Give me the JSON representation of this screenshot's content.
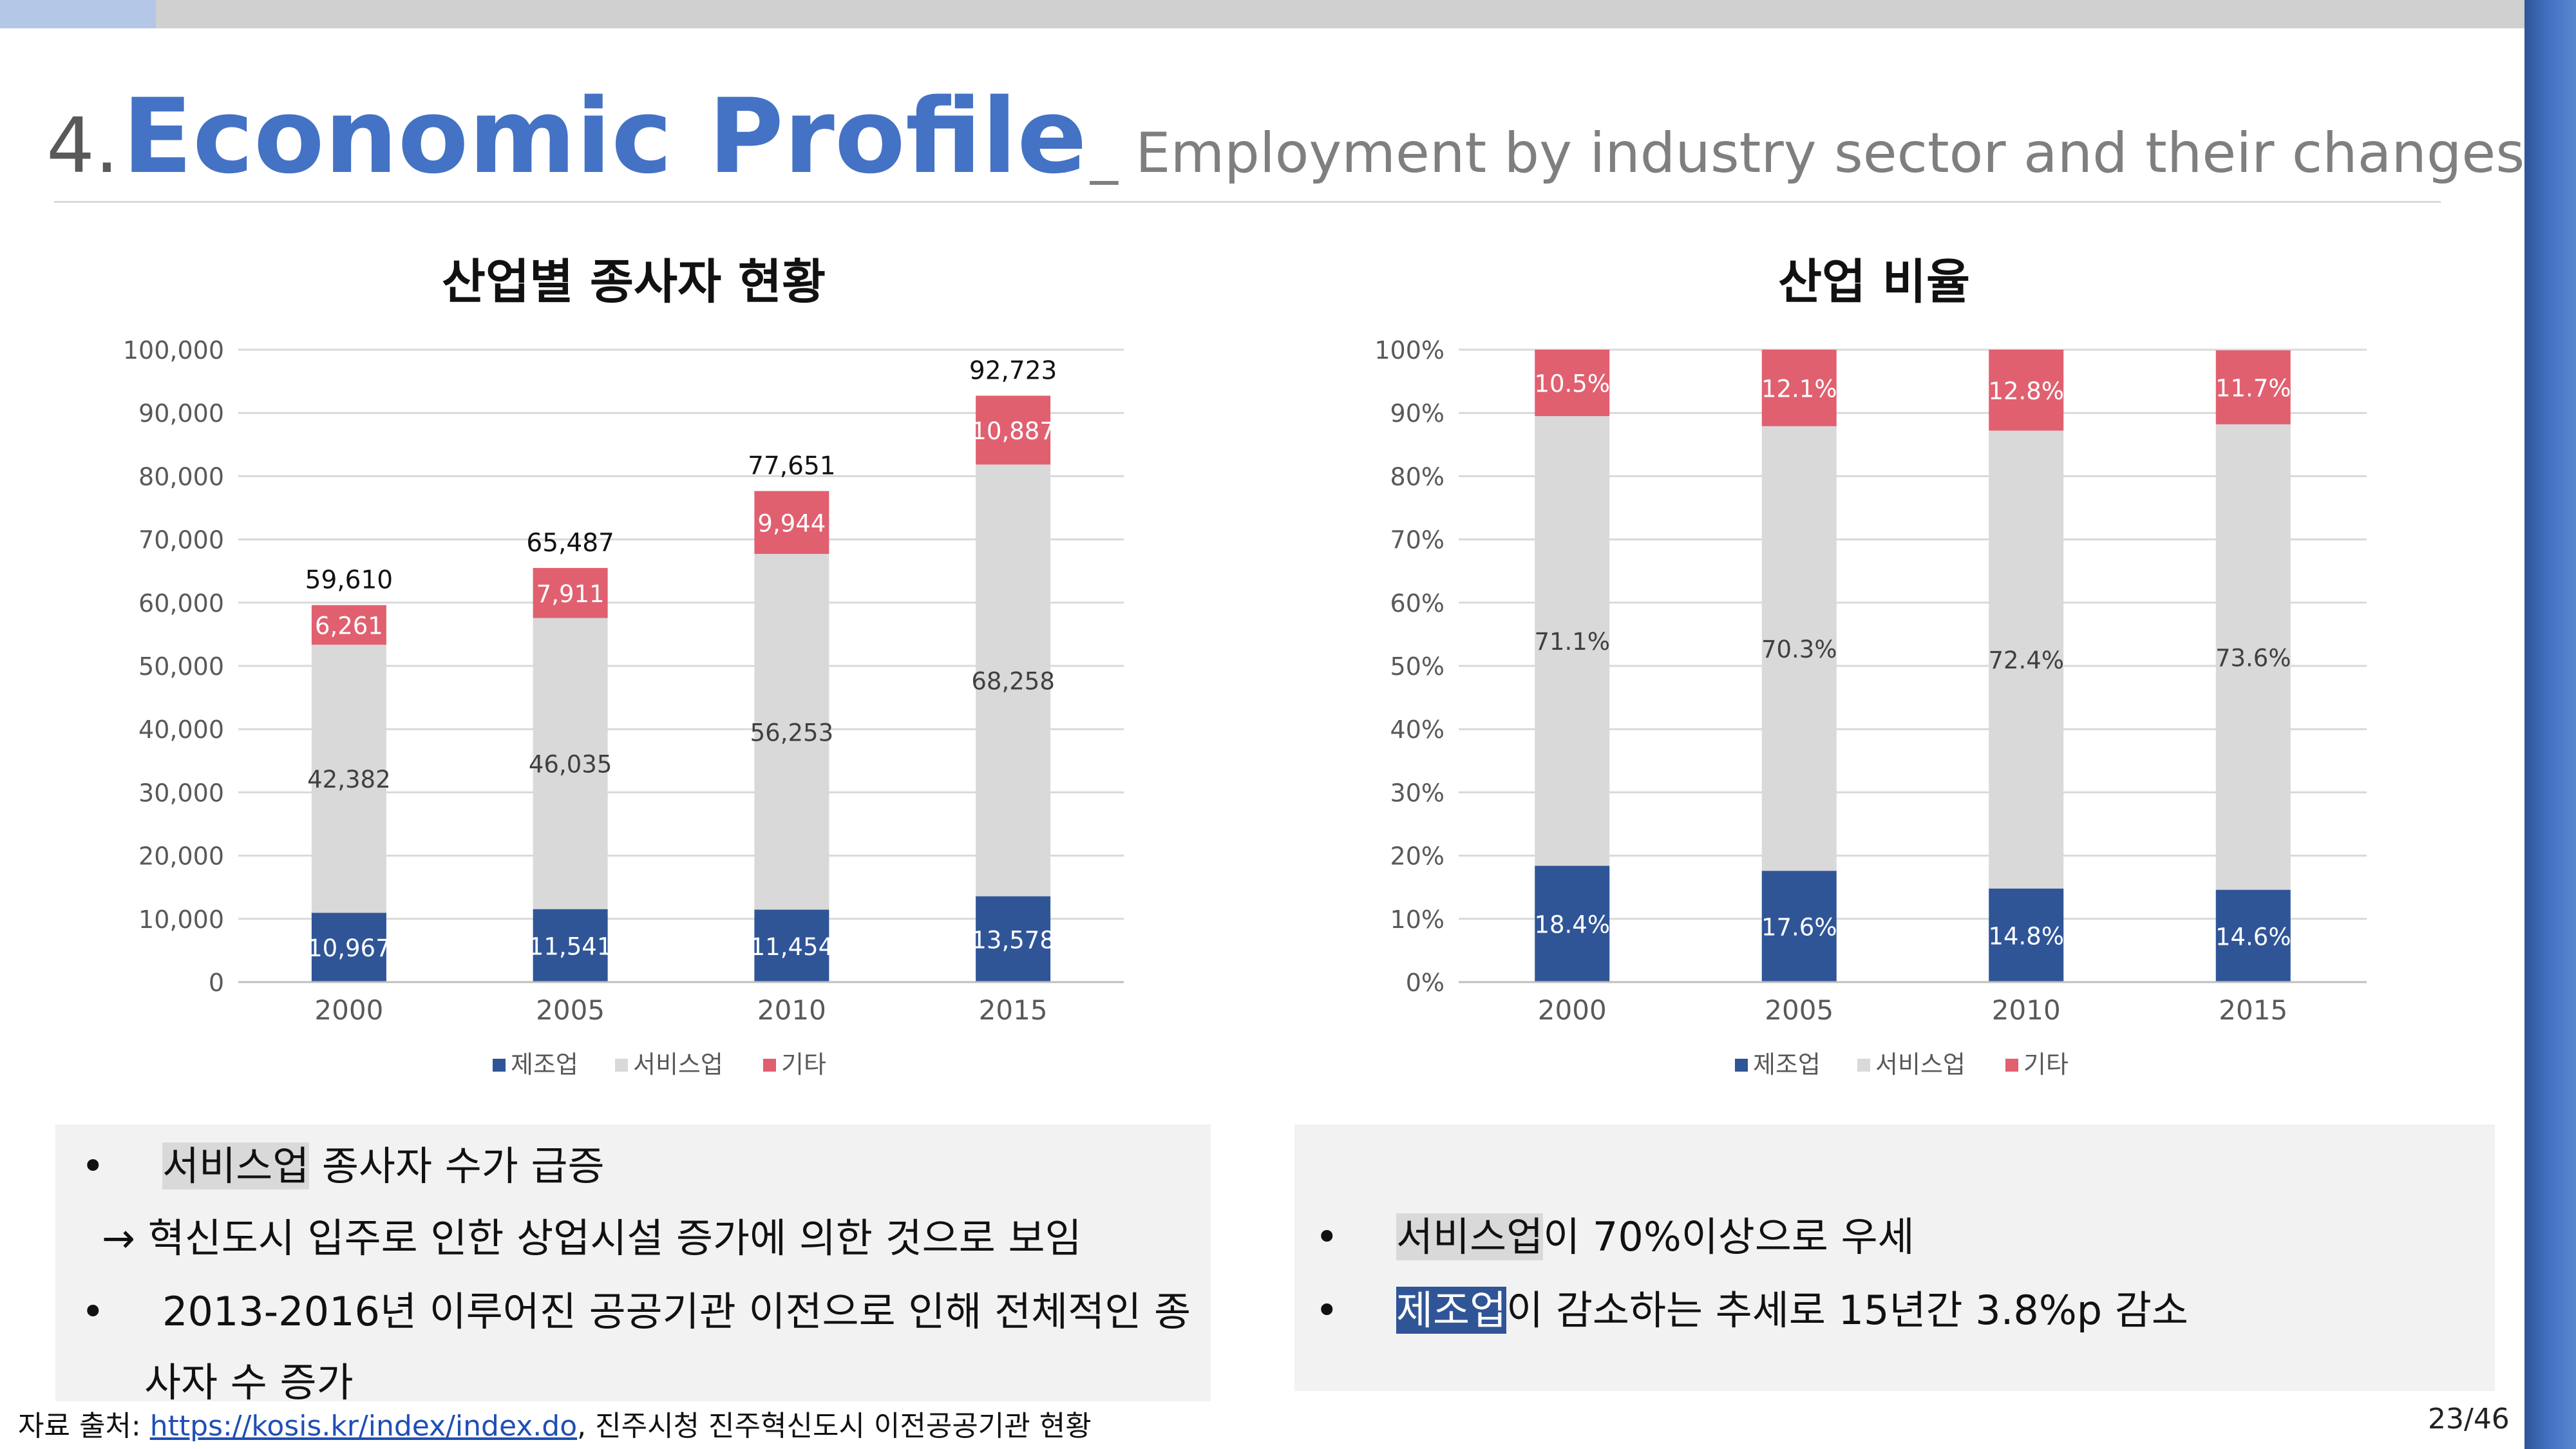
{
  "header": {
    "number": "4.",
    "title": "Economic Profile",
    "subtitle": "_ Employment by industry sector and their changes"
  },
  "legend": {
    "manufacturing": "제조업",
    "service": "서비스업",
    "other": "기타"
  },
  "colors": {
    "manufacturing": "#2f5597",
    "service": "#d9d9d9",
    "other": "#e06070",
    "title_blue": "#4472c4"
  },
  "chart_data": [
    {
      "type": "bar",
      "stacked": true,
      "title": "산업별 종사자 현황",
      "categories": [
        "2000",
        "2005",
        "2010",
        "2015"
      ],
      "series": [
        {
          "name": "제조업",
          "values": [
            10967,
            11541,
            11454,
            13578
          ],
          "labels": [
            "10,967",
            "11,541",
            "11,454",
            "13,578"
          ]
        },
        {
          "name": "서비스업",
          "values": [
            42382,
            46035,
            56253,
            68258
          ],
          "labels": [
            "42,382",
            "46,035",
            "56,253",
            "68,258"
          ]
        },
        {
          "name": "기타",
          "values": [
            6261,
            7911,
            9944,
            10887
          ],
          "labels": [
            "6,261",
            "7,911",
            "9,944",
            "10,887"
          ]
        }
      ],
      "totals": [
        "59,610",
        "65,487",
        "77,651",
        "92,723"
      ],
      "ylim": [
        0,
        100000
      ],
      "yticks": [
        "0",
        "10,000",
        "20,000",
        "30,000",
        "40,000",
        "50,000",
        "60,000",
        "70,000",
        "80,000",
        "90,000",
        "100,000"
      ],
      "grid": true,
      "legend_position": "bottom"
    },
    {
      "type": "bar",
      "stacked": true,
      "title": "산업 비율",
      "categories": [
        "2000",
        "2005",
        "2010",
        "2015"
      ],
      "series": [
        {
          "name": "제조업",
          "values": [
            18.4,
            17.6,
            14.8,
            14.6
          ],
          "labels": [
            "18.4%",
            "17.6%",
            "14.8%",
            "14.6%"
          ]
        },
        {
          "name": "서비스업",
          "values": [
            71.1,
            70.3,
            72.4,
            73.6
          ],
          "labels": [
            "71.1%",
            "70.3%",
            "72.4%",
            "73.6%"
          ]
        },
        {
          "name": "기타",
          "values": [
            10.5,
            12.1,
            12.8,
            11.7
          ],
          "labels": [
            "10.5%",
            "12.1%",
            "12.8%",
            "11.7%"
          ]
        }
      ],
      "ylim": [
        0,
        100
      ],
      "yticks": [
        "0%",
        "10%",
        "20%",
        "30%",
        "40%",
        "50%",
        "60%",
        "70%",
        "80%",
        "90%",
        "100%"
      ],
      "grid": true,
      "legend_position": "bottom"
    }
  ],
  "notes_left": {
    "b1_highlight": "서비스업",
    "b1_rest": " 종사자 수가 급증",
    "b1_sub": "→ 혁신도시 입주로 인한 상업시설 증가에 의한 것으로 보임",
    "b2_line1": "2013-2016년 이루어진 공공기관 이전으로 인해  전체적인  종",
    "b2_line2": "사자 수 증가"
  },
  "notes_right": {
    "b1_highlight": "서비스업",
    "b1_rest": "이 70%이상으로 우세",
    "b2_highlight": "제조업",
    "b2_rest": "이 감소하는 추세로 15년간 3.8%p 감소"
  },
  "footer": {
    "source_prefix": "자료 출처: ",
    "source_link": "https://kosis.kr/index/index.do",
    "source_suffix": ", 진주시청 진주혁신도시 이전공공기관 현황",
    "page": "23/46"
  }
}
